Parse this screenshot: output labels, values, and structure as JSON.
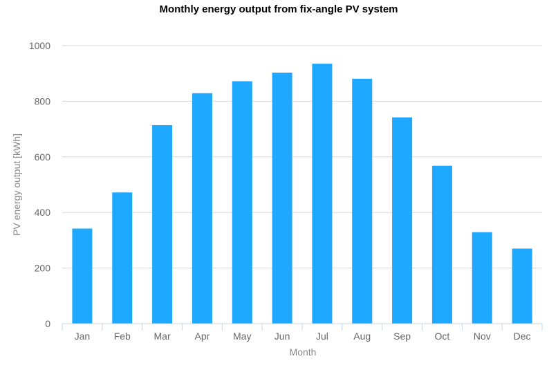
{
  "chart_data": {
    "type": "bar",
    "title": "Monthly energy output from fix-angle PV system",
    "xlabel": "Month",
    "ylabel": "PV energy output [kWh]",
    "categories": [
      "Jan",
      "Feb",
      "Mar",
      "Apr",
      "May",
      "Jun",
      "Jul",
      "Aug",
      "Sep",
      "Oct",
      "Nov",
      "Dec"
    ],
    "values": [
      342,
      472,
      714,
      829,
      872,
      903,
      935,
      881,
      742,
      568,
      329,
      270
    ],
    "ylim": [
      0,
      1000
    ],
    "yticks": [
      0,
      200,
      400,
      600,
      800,
      1000
    ],
    "grid": true,
    "legend": "none",
    "bar_color": "#1fa8ff"
  }
}
